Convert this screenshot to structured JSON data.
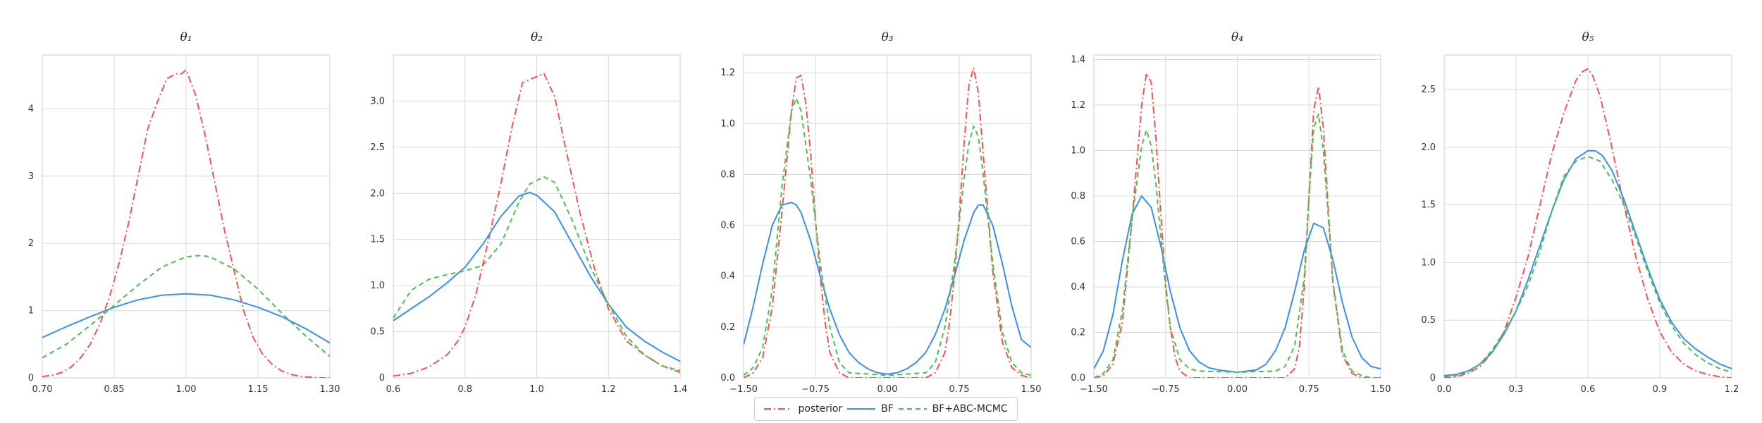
{
  "legend": {
    "items": [
      {
        "label": "posterior",
        "color": "#ff4f4f",
        "dash": "10 4 2 4"
      },
      {
        "label": "BF",
        "color": "#3a8ff0",
        "dash": ""
      },
      {
        "label": "BF+ABC-MCMC",
        "color": "#49c24d",
        "dash": "7 5"
      }
    ]
  },
  "chart_data": [
    {
      "type": "line",
      "title": "θ₁",
      "grid": true,
      "xlim": [
        0.7,
        1.3
      ],
      "ylim": [
        0,
        4.8
      ],
      "xticks": [
        0.7,
        0.85,
        1.0,
        1.15,
        1.3
      ],
      "xtick_labels": [
        "0.70",
        "0.85",
        "1.00",
        "1.15",
        "1.30"
      ],
      "yticks": [
        0,
        1,
        2,
        3,
        4
      ],
      "ytick_labels": [
        "0",
        "1",
        "2",
        "3",
        "4"
      ],
      "series": [
        {
          "name": "posterior",
          "x": [
            0.7,
            0.72,
            0.74,
            0.76,
            0.78,
            0.8,
            0.82,
            0.84,
            0.86,
            0.88,
            0.9,
            0.92,
            0.94,
            0.96,
            0.98,
            0.99,
            1.0,
            1.02,
            1.04,
            1.06,
            1.08,
            1.1,
            1.12,
            1.14,
            1.16,
            1.18,
            1.2,
            1.22,
            1.24,
            1.26,
            1.28,
            1.3
          ],
          "y": [
            0.02,
            0.04,
            0.08,
            0.16,
            0.3,
            0.5,
            0.8,
            1.2,
            1.7,
            2.3,
            3.0,
            3.7,
            4.1,
            4.45,
            4.52,
            4.52,
            4.58,
            4.2,
            3.6,
            2.9,
            2.2,
            1.6,
            1.0,
            0.6,
            0.35,
            0.2,
            0.1,
            0.05,
            0.02,
            0.01,
            0.0,
            0.0
          ]
        },
        {
          "name": "BF",
          "x": [
            0.7,
            0.75,
            0.8,
            0.85,
            0.9,
            0.95,
            1.0,
            1.05,
            1.1,
            1.15,
            1.2,
            1.25,
            1.3
          ],
          "y": [
            0.6,
            0.76,
            0.91,
            1.05,
            1.16,
            1.23,
            1.25,
            1.23,
            1.16,
            1.05,
            0.91,
            0.73,
            0.52
          ]
        },
        {
          "name": "BF+ABC-MCMC",
          "x": [
            0.7,
            0.75,
            0.8,
            0.85,
            0.9,
            0.95,
            1.0,
            1.03,
            1.05,
            1.1,
            1.15,
            1.2,
            1.25,
            1.3
          ],
          "y": [
            0.3,
            0.5,
            0.78,
            1.08,
            1.38,
            1.65,
            1.8,
            1.82,
            1.8,
            1.62,
            1.32,
            0.96,
            0.62,
            0.32
          ]
        }
      ]
    },
    {
      "type": "line",
      "title": "θ₂",
      "grid": true,
      "xlim": [
        0.6,
        1.4
      ],
      "ylim": [
        0,
        3.5
      ],
      "xticks": [
        0.6,
        0.8,
        1.0,
        1.2,
        1.4
      ],
      "xtick_labels": [
        "0.6",
        "0.8",
        "1.0",
        "1.2",
        "1.4"
      ],
      "yticks": [
        0,
        0.5,
        1.0,
        1.5,
        2.0,
        2.5,
        3.0
      ],
      "ytick_labels": [
        "0",
        "0.5",
        "1.0",
        "1.5",
        "2.0",
        "2.5",
        "3.0"
      ],
      "series": [
        {
          "name": "posterior",
          "x": [
            0.6,
            0.65,
            0.7,
            0.75,
            0.78,
            0.8,
            0.83,
            0.86,
            0.9,
            0.93,
            0.96,
            0.99,
            1.02,
            1.05,
            1.08,
            1.12,
            1.16,
            1.2,
            1.25,
            1.3,
            1.35,
            1.4
          ],
          "y": [
            0.02,
            0.05,
            0.12,
            0.25,
            0.4,
            0.55,
            0.9,
            1.4,
            2.1,
            2.7,
            3.2,
            3.25,
            3.3,
            3.05,
            2.5,
            1.8,
            1.2,
            0.75,
            0.4,
            0.25,
            0.13,
            0.06
          ]
        },
        {
          "name": "BF",
          "x": [
            0.6,
            0.65,
            0.7,
            0.75,
            0.8,
            0.85,
            0.9,
            0.95,
            0.98,
            1.0,
            1.05,
            1.1,
            1.15,
            1.2,
            1.25,
            1.3,
            1.35,
            1.4
          ],
          "y": [
            0.62,
            0.75,
            0.88,
            1.03,
            1.2,
            1.45,
            1.75,
            1.97,
            2.01,
            1.98,
            1.8,
            1.45,
            1.1,
            0.8,
            0.55,
            0.4,
            0.28,
            0.18
          ]
        },
        {
          "name": "BF+ABC-MCMC",
          "x": [
            0.6,
            0.65,
            0.7,
            0.75,
            0.8,
            0.85,
            0.9,
            0.95,
            0.98,
            1.02,
            1.05,
            1.1,
            1.15,
            1.2,
            1.25,
            1.3,
            1.35,
            1.4
          ],
          "y": [
            0.65,
            0.95,
            1.07,
            1.12,
            1.16,
            1.22,
            1.45,
            1.9,
            2.1,
            2.18,
            2.12,
            1.7,
            1.2,
            0.8,
            0.45,
            0.25,
            0.13,
            0.08
          ]
        }
      ]
    },
    {
      "type": "line",
      "title": "θ₃",
      "grid": true,
      "xlim": [
        -1.5,
        1.5
      ],
      "ylim": [
        0,
        1.27
      ],
      "xticks": [
        -1.5,
        -0.75,
        0.0,
        0.75,
        1.5
      ],
      "xtick_labels": [
        "−1.50",
        "−0.75",
        "0.00",
        "0.75",
        "1.50"
      ],
      "yticks": [
        0,
        0.2,
        0.4,
        0.6,
        0.8,
        1.0,
        1.2
      ],
      "ytick_labels": [
        "0.0",
        "0.2",
        "0.4",
        "0.6",
        "0.8",
        "1.0",
        "1.2"
      ],
      "series": [
        {
          "name": "posterior",
          "x": [
            -1.5,
            -1.4,
            -1.3,
            -1.2,
            -1.1,
            -1.0,
            -0.95,
            -0.9,
            -0.85,
            -0.8,
            -0.75,
            -0.7,
            -0.65,
            -0.6,
            -0.5,
            -0.4,
            0.0,
            0.4,
            0.5,
            0.6,
            0.65,
            0.7,
            0.75,
            0.8,
            0.85,
            0.9,
            0.95,
            1.0,
            1.1,
            1.2,
            1.3,
            1.4,
            1.5
          ],
          "y": [
            0.0,
            0.02,
            0.08,
            0.28,
            0.65,
            1.05,
            1.18,
            1.19,
            1.08,
            0.88,
            0.62,
            0.4,
            0.22,
            0.1,
            0.02,
            0.0,
            0.0,
            0.0,
            0.02,
            0.1,
            0.22,
            0.4,
            0.64,
            0.92,
            1.15,
            1.22,
            1.12,
            0.88,
            0.42,
            0.14,
            0.04,
            0.01,
            0.0
          ]
        },
        {
          "name": "BF",
          "x": [
            -1.5,
            -1.4,
            -1.3,
            -1.2,
            -1.1,
            -1.0,
            -0.95,
            -0.9,
            -0.8,
            -0.7,
            -0.6,
            -0.5,
            -0.4,
            -0.3,
            -0.2,
            -0.1,
            0.0,
            0.1,
            0.2,
            0.3,
            0.4,
            0.5,
            0.6,
            0.7,
            0.8,
            0.9,
            0.95,
            1.0,
            1.1,
            1.2,
            1.3,
            1.4,
            1.5
          ],
          "y": [
            0.13,
            0.28,
            0.45,
            0.6,
            0.68,
            0.69,
            0.68,
            0.65,
            0.54,
            0.4,
            0.27,
            0.17,
            0.1,
            0.06,
            0.035,
            0.02,
            0.015,
            0.02,
            0.035,
            0.06,
            0.1,
            0.17,
            0.27,
            0.4,
            0.54,
            0.65,
            0.68,
            0.68,
            0.6,
            0.45,
            0.28,
            0.15,
            0.12
          ]
        },
        {
          "name": "BF+ABC-MCMC",
          "x": [
            -1.5,
            -1.4,
            -1.3,
            -1.2,
            -1.1,
            -1.0,
            -0.95,
            -0.9,
            -0.8,
            -0.7,
            -0.6,
            -0.5,
            -0.4,
            0.0,
            0.4,
            0.5,
            0.6,
            0.7,
            0.8,
            0.85,
            0.9,
            0.95,
            1.0,
            1.1,
            1.2,
            1.3,
            1.4,
            1.5
          ],
          "y": [
            0.01,
            0.04,
            0.12,
            0.35,
            0.75,
            1.05,
            1.1,
            1.05,
            0.78,
            0.45,
            0.2,
            0.06,
            0.02,
            0.01,
            0.02,
            0.06,
            0.2,
            0.45,
            0.78,
            0.92,
            0.99,
            0.95,
            0.8,
            0.45,
            0.18,
            0.06,
            0.02,
            0.01
          ]
        }
      ]
    },
    {
      "type": "line",
      "title": "θ₄",
      "grid": true,
      "xlim": [
        -1.5,
        1.5
      ],
      "ylim": [
        0,
        1.42
      ],
      "xticks": [
        -1.5,
        -0.75,
        0.0,
        0.75,
        1.5
      ],
      "xtick_labels": [
        "−1.50",
        "−0.75",
        "0.00",
        "0.75",
        "1.50"
      ],
      "yticks": [
        0,
        0.2,
        0.4,
        0.6,
        0.8,
        1.0,
        1.2,
        1.4
      ],
      "ytick_labels": [
        "0.0",
        "0.2",
        "0.4",
        "0.6",
        "0.8",
        "1.0",
        "1.2",
        "1.4"
      ],
      "series": [
        {
          "name": "posterior",
          "x": [
            -1.5,
            -1.4,
            -1.3,
            -1.2,
            -1.1,
            -1.0,
            -0.95,
            -0.9,
            -0.85,
            -0.8,
            -0.75,
            -0.7,
            -0.65,
            -0.6,
            -0.5,
            -0.4,
            0.0,
            0.5,
            0.6,
            0.65,
            0.7,
            0.75,
            0.8,
            0.85,
            0.9,
            0.95,
            1.0,
            1.1,
            1.2,
            1.3,
            1.4,
            1.5
          ],
          "y": [
            0.0,
            0.01,
            0.06,
            0.25,
            0.7,
            1.2,
            1.34,
            1.3,
            1.05,
            0.72,
            0.42,
            0.22,
            0.09,
            0.03,
            0.0,
            0.0,
            0.0,
            0.0,
            0.04,
            0.14,
            0.4,
            0.8,
            1.18,
            1.28,
            1.1,
            0.75,
            0.42,
            0.1,
            0.02,
            0.0,
            0.0,
            0.0
          ]
        },
        {
          "name": "BF",
          "x": [
            -1.5,
            -1.4,
            -1.3,
            -1.2,
            -1.1,
            -1.0,
            -0.9,
            -0.8,
            -0.7,
            -0.6,
            -0.5,
            -0.4,
            -0.3,
            -0.2,
            -0.1,
            0.0,
            0.1,
            0.2,
            0.3,
            0.4,
            0.5,
            0.6,
            0.7,
            0.8,
            0.9,
            1.0,
            1.1,
            1.2,
            1.3,
            1.4,
            1.5
          ],
          "y": [
            0.04,
            0.12,
            0.28,
            0.52,
            0.72,
            0.8,
            0.75,
            0.58,
            0.38,
            0.22,
            0.12,
            0.07,
            0.045,
            0.035,
            0.03,
            0.025,
            0.03,
            0.035,
            0.06,
            0.12,
            0.22,
            0.38,
            0.56,
            0.68,
            0.66,
            0.52,
            0.33,
            0.18,
            0.09,
            0.05,
            0.04
          ]
        },
        {
          "name": "BF+ABC-MCMC",
          "x": [
            -1.5,
            -1.4,
            -1.3,
            -1.2,
            -1.1,
            -1.0,
            -0.95,
            -0.9,
            -0.85,
            -0.8,
            -0.75,
            -0.7,
            -0.6,
            -0.5,
            -0.4,
            0.0,
            0.4,
            0.5,
            0.6,
            0.7,
            0.75,
            0.8,
            0.85,
            0.9,
            0.95,
            1.0,
            1.1,
            1.2,
            1.3,
            1.4,
            1.5
          ],
          "y": [
            0.0,
            0.02,
            0.08,
            0.3,
            0.7,
            1.02,
            1.09,
            1.02,
            0.85,
            0.62,
            0.4,
            0.22,
            0.08,
            0.04,
            0.03,
            0.025,
            0.03,
            0.05,
            0.14,
            0.44,
            0.8,
            1.1,
            1.16,
            1.0,
            0.72,
            0.42,
            0.12,
            0.03,
            0.01,
            0.0,
            0.0
          ]
        }
      ]
    },
    {
      "type": "line",
      "title": "θ₅",
      "grid": true,
      "xlim": [
        0.0,
        1.2
      ],
      "ylim": [
        0,
        2.8
      ],
      "xticks": [
        0.0,
        0.3,
        0.6,
        0.9,
        1.2
      ],
      "xtick_labels": [
        "0.0",
        "0.3",
        "0.6",
        "0.9",
        "1.2"
      ],
      "yticks": [
        0,
        0.5,
        1.0,
        1.5,
        2.0,
        2.5
      ],
      "ytick_labels": [
        "0",
        "0.5",
        "1.0",
        "1.5",
        "2.0",
        "2.5"
      ],
      "series": [
        {
          "name": "posterior",
          "x": [
            0.0,
            0.05,
            0.1,
            0.15,
            0.2,
            0.25,
            0.3,
            0.35,
            0.4,
            0.45,
            0.5,
            0.55,
            0.58,
            0.6,
            0.62,
            0.65,
            0.7,
            0.75,
            0.8,
            0.85,
            0.9,
            0.95,
            1.0,
            1.05,
            1.1,
            1.15,
            1.2
          ],
          "y": [
            0.0,
            0.01,
            0.04,
            0.1,
            0.22,
            0.4,
            0.7,
            1.05,
            1.5,
            1.95,
            2.3,
            2.58,
            2.66,
            2.68,
            2.62,
            2.45,
            2.0,
            1.5,
            1.05,
            0.68,
            0.4,
            0.22,
            0.12,
            0.06,
            0.03,
            0.01,
            0.0
          ]
        },
        {
          "name": "BF",
          "x": [
            0.0,
            0.05,
            0.1,
            0.15,
            0.2,
            0.25,
            0.3,
            0.35,
            0.4,
            0.45,
            0.5,
            0.55,
            0.6,
            0.63,
            0.66,
            0.7,
            0.75,
            0.8,
            0.85,
            0.9,
            0.95,
            1.0,
            1.05,
            1.1,
            1.15,
            1.2
          ],
          "y": [
            0.02,
            0.03,
            0.06,
            0.12,
            0.22,
            0.38,
            0.58,
            0.85,
            1.15,
            1.45,
            1.72,
            1.9,
            1.97,
            1.97,
            1.93,
            1.8,
            1.55,
            1.25,
            0.95,
            0.68,
            0.48,
            0.34,
            0.25,
            0.18,
            0.12,
            0.08
          ]
        },
        {
          "name": "BF+ABC-MCMC",
          "x": [
            0.0,
            0.05,
            0.1,
            0.15,
            0.2,
            0.25,
            0.3,
            0.35,
            0.4,
            0.45,
            0.5,
            0.55,
            0.6,
            0.65,
            0.7,
            0.75,
            0.8,
            0.85,
            0.9,
            0.95,
            1.0,
            1.05,
            1.1,
            1.15,
            1.2
          ],
          "y": [
            0.01,
            0.02,
            0.05,
            0.12,
            0.24,
            0.4,
            0.58,
            0.8,
            1.1,
            1.45,
            1.75,
            1.88,
            1.92,
            1.88,
            1.72,
            1.5,
            1.22,
            0.92,
            0.65,
            0.45,
            0.3,
            0.2,
            0.13,
            0.08,
            0.05
          ]
        }
      ]
    }
  ]
}
